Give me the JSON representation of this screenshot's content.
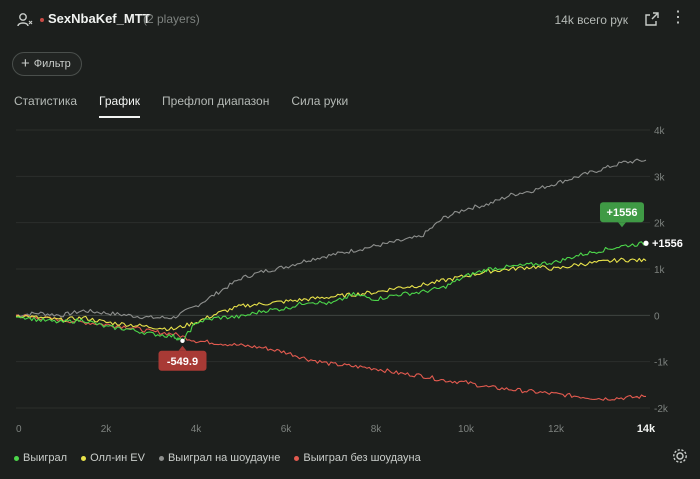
{
  "header": {
    "player_name": "SexNbaKef_MTT",
    "players_count": "(2 players)",
    "hands_total": "14k всего рук",
    "more_glyph": "⋮",
    "status_color": "#c94b45"
  },
  "filter": {
    "label": "Фильтр",
    "icon": "+"
  },
  "tabs": [
    {
      "label": "Статистика",
      "active": false
    },
    {
      "label": "График",
      "active": true
    },
    {
      "label": "Префлоп диапазон",
      "active": false
    },
    {
      "label": "Сила руки",
      "active": false
    }
  ],
  "legend": [
    {
      "label": "Выиграл",
      "color": "#4cd64a"
    },
    {
      "label": "Олл-ин EV",
      "color": "#e8e24a"
    },
    {
      "label": "Выиграл на шоудауне",
      "color": "#8d8f8d"
    },
    {
      "label": "Выиграл без шоудауна",
      "color": "#e25a4f"
    }
  ],
  "chart_data": {
    "type": "line",
    "xlabel": "",
    "ylabel": "",
    "x_ticks": [
      "0",
      "2k",
      "4k",
      "6k",
      "8k",
      "10k",
      "12k",
      "14k"
    ],
    "y_ticks": [
      "4k",
      "3k",
      "2k",
      "1k",
      "0",
      "-1k",
      "-2k"
    ],
    "xlim": [
      0,
      14000
    ],
    "ylim": [
      -2000,
      4000
    ],
    "grid": true,
    "annotations": {
      "max_label": "+1556",
      "end_label": "+1556",
      "min_label": "-549.9",
      "min_x": 3700,
      "min_y": -549.9
    },
    "series": [
      {
        "name": "Выиграл",
        "color": "#4cd64a",
        "x": [
          0,
          500,
          1000,
          1500,
          2000,
          2500,
          3000,
          3500,
          3700,
          4000,
          4500,
          5000,
          5500,
          6000,
          6500,
          7000,
          7500,
          8000,
          8500,
          9000,
          9500,
          10000,
          10500,
          11000,
          11500,
          12000,
          12500,
          13000,
          13500,
          14000
        ],
        "y": [
          0,
          -100,
          -150,
          -100,
          -250,
          -300,
          -400,
          -450,
          -550,
          -150,
          -50,
          -30,
          100,
          150,
          300,
          250,
          450,
          350,
          450,
          500,
          600,
          850,
          1000,
          1050,
          1100,
          1150,
          1300,
          1400,
          1500,
          1556
        ]
      },
      {
        "name": "Олл-ин EV",
        "color": "#e8e24a",
        "x": [
          0,
          500,
          1000,
          1500,
          2000,
          2500,
          3000,
          3500,
          4000,
          4500,
          5000,
          5500,
          6000,
          6500,
          7000,
          7500,
          8000,
          8500,
          9000,
          9500,
          10000,
          10500,
          11000,
          11500,
          12000,
          12500,
          13000,
          13500,
          14000
        ],
        "y": [
          0,
          -50,
          -100,
          -50,
          -150,
          -200,
          -250,
          -300,
          -150,
          50,
          200,
          250,
          300,
          350,
          400,
          450,
          500,
          600,
          650,
          750,
          850,
          950,
          1000,
          1050,
          1000,
          1100,
          1150,
          1200,
          1180
        ]
      },
      {
        "name": "Выиграл на шоудауне",
        "color": "#8d8f8d",
        "x": [
          0,
          500,
          1000,
          1500,
          2000,
          2500,
          3000,
          3500,
          4000,
          4500,
          5000,
          5500,
          6000,
          6500,
          7000,
          7500,
          8000,
          8500,
          9000,
          9500,
          10000,
          10500,
          11000,
          11500,
          12000,
          12500,
          13000,
          13500,
          14000
        ],
        "y": [
          0,
          50,
          0,
          100,
          50,
          0,
          -50,
          -50,
          200,
          500,
          800,
          950,
          1050,
          1200,
          1300,
          1400,
          1500,
          1600,
          1700,
          2100,
          2300,
          2400,
          2600,
          2700,
          2850,
          3000,
          3150,
          3300,
          3350
        ]
      },
      {
        "name": "Выиграл без шоудауна",
        "color": "#e25a4f",
        "x": [
          0,
          500,
          1000,
          1500,
          2000,
          2500,
          3000,
          3500,
          4000,
          4500,
          5000,
          5500,
          6000,
          6500,
          7000,
          7500,
          8000,
          8500,
          9000,
          9500,
          10000,
          10500,
          11000,
          11500,
          12000,
          12500,
          13000,
          13500,
          14000
        ],
        "y": [
          0,
          -50,
          -100,
          -150,
          -200,
          -250,
          -350,
          -400,
          -550,
          -600,
          -650,
          -700,
          -800,
          -950,
          -1050,
          -1100,
          -1150,
          -1250,
          -1300,
          -1400,
          -1450,
          -1550,
          -1600,
          -1650,
          -1700,
          -1750,
          -1800,
          -1780,
          -1750
        ]
      }
    ]
  }
}
